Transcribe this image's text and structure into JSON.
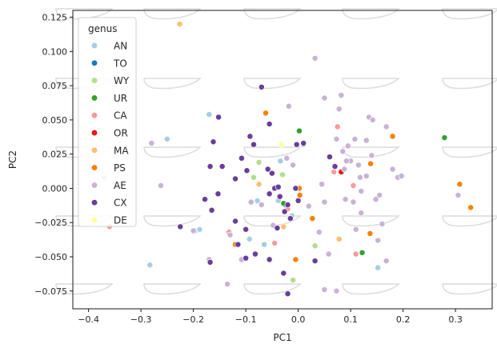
{
  "chart_data": {
    "type": "scatter",
    "xlabel": "PC1",
    "ylabel": "PC2",
    "xlim": [
      -0.43,
      0.37
    ],
    "ylim": [
      -0.088,
      0.13
    ],
    "xticks": [
      -0.4,
      -0.3,
      -0.2,
      -0.1,
      0.0,
      0.1,
      0.2,
      0.3
    ],
    "xtick_labels": [
      "−0.4",
      "−0.3",
      "−0.2",
      "−0.1",
      "0.0",
      "0.1",
      "0.2",
      "0.3"
    ],
    "yticks": [
      -0.075,
      -0.05,
      -0.025,
      0.0,
      0.025,
      0.05,
      0.075,
      0.1,
      0.125
    ],
    "ytick_labels": [
      "−0.075",
      "−0.050",
      "−0.025",
      "0.000",
      "0.025",
      "0.050",
      "0.075",
      "0.100",
      "0.125"
    ],
    "grid": false,
    "legend": {
      "title": "genus",
      "placement": "upper-left"
    },
    "series": [
      {
        "name": "AN",
        "color": "#a6cee3",
        "points": [
          [
            -0.37,
            0.008
          ],
          [
            -0.283,
            -0.056
          ],
          [
            -0.25,
            0.036
          ],
          [
            -0.197,
            -0.031
          ],
          [
            -0.188,
            -0.03
          ],
          [
            -0.17,
            0.054
          ],
          [
            -0.093,
            -0.037
          ],
          [
            -0.065,
            -0.041
          ],
          [
            -0.078,
            -0.009
          ],
          [
            -0.038,
            -0.009
          ],
          [
            -0.012,
            -0.02
          ],
          [
            -0.034,
            0.02
          ],
          [
            0.152,
            -0.058
          ]
        ]
      },
      {
        "name": "TO",
        "color": "#1f78b4",
        "points": [
          [
            -0.025,
            -0.012
          ]
        ]
      },
      {
        "name": "WY",
        "color": "#b2df8a",
        "points": [
          [
            -0.085,
            0.008
          ],
          [
            -0.075,
            0.019
          ],
          [
            -0.03,
            0.01
          ],
          [
            0.032,
            -0.042
          ],
          [
            -0.01,
            -0.067
          ]
        ]
      },
      {
        "name": "UR",
        "color": "#33a02c",
        "points": [
          [
            0.002,
            0.042
          ],
          [
            -0.028,
            -0.011
          ],
          [
            0.279,
            0.037
          ],
          [
            0.122,
            -0.047
          ]
        ]
      },
      {
        "name": "CA",
        "color": "#fb9a99",
        "points": [
          [
            -0.36,
            -0.028
          ],
          [
            -0.132,
            -0.032
          ],
          [
            -0.045,
            -0.04
          ],
          [
            -0.02,
            -0.015
          ],
          [
            0.075,
            0.045
          ],
          [
            0.105,
            0.002
          ],
          [
            0.068,
            0.012
          ],
          [
            0.11,
            -0.048
          ]
        ]
      },
      {
        "name": "OR",
        "color": "#e31a1c",
        "points": [
          [
            0.082,
            0.012
          ]
        ]
      },
      {
        "name": "MA",
        "color": "#fdbf6f",
        "points": [
          [
            -0.226,
            0.12
          ],
          [
            -0.075,
            0.003
          ],
          [
            -0.028,
            -0.028
          ],
          [
            0.078,
            -0.037
          ]
        ]
      },
      {
        "name": "PS",
        "color": "#ff7f00",
        "points": [
          [
            -0.062,
            0.055
          ],
          [
            0.003,
            -0.005
          ],
          [
            0.002,
            0.0
          ],
          [
            -0.005,
            -0.052
          ],
          [
            0.027,
            -0.022
          ],
          [
            0.138,
            0.018
          ],
          [
            0.137,
            -0.033
          ],
          [
            0.18,
            0.038
          ],
          [
            0.308,
            0.003
          ],
          [
            0.329,
            -0.014
          ],
          [
            -0.12,
            -0.041
          ]
        ]
      },
      {
        "name": "AE",
        "color": "#cab2d6",
        "points": [
          [
            -0.28,
            0.033
          ],
          [
            -0.262,
            0.002
          ],
          [
            -0.2,
            -0.031
          ],
          [
            -0.17,
            -0.052
          ],
          [
            -0.13,
            -0.034
          ],
          [
            -0.108,
            -0.052
          ],
          [
            -0.135,
            -0.07
          ],
          [
            -0.09,
            -0.01
          ],
          [
            -0.07,
            -0.012
          ],
          [
            -0.048,
            -0.027
          ],
          [
            -0.022,
            0.022
          ],
          [
            -0.01,
            0.017
          ],
          [
            -0.018,
            0.06
          ],
          [
            0.01,
            0.032
          ],
          [
            0.032,
            0.095
          ],
          [
            0.05,
            0.066
          ],
          [
            0.073,
            0.036
          ],
          [
            0.078,
            0.058
          ],
          [
            0.082,
            0.068
          ],
          [
            0.085,
            0.027
          ],
          [
            0.095,
            0.031
          ],
          [
            0.088,
            0.014
          ],
          [
            0.1,
            0.02
          ],
          [
            0.108,
            0.036
          ],
          [
            0.115,
            0.017
          ],
          [
            0.118,
            0.008
          ],
          [
            0.12,
            -0.002
          ],
          [
            0.13,
            0.035
          ],
          [
            0.135,
            0.052
          ],
          [
            0.142,
            0.05
          ],
          [
            0.14,
            0.024
          ],
          [
            0.13,
            0.009
          ],
          [
            0.168,
            0.045
          ],
          [
            0.18,
            0.014
          ],
          [
            0.19,
            0.008
          ],
          [
            0.197,
            0.009
          ],
          [
            0.155,
            -0.005
          ],
          [
            0.148,
            -0.008
          ],
          [
            0.16,
            -0.026
          ],
          [
            0.152,
            -0.038
          ],
          [
            0.12,
            -0.018
          ],
          [
            0.105,
            -0.01
          ],
          [
            0.11,
            -0.03
          ],
          [
            0.05,
            -0.01
          ],
          [
            0.04,
            -0.032
          ],
          [
            0.058,
            -0.048
          ],
          [
            0.09,
            -0.008
          ],
          [
            0.05,
            -0.074
          ],
          [
            0.073,
            -0.075
          ],
          [
            0.168,
            -0.053
          ],
          [
            0.305,
            -0.005
          ],
          [
            0.045,
            0.003
          ],
          [
            0.092,
            0.02
          ],
          [
            0.02,
            -0.013
          ]
        ]
      },
      {
        "name": "CX",
        "color": "#6a3d9a",
        "points": [
          [
            -0.168,
            0.016
          ],
          [
            -0.152,
            0.052
          ],
          [
            -0.162,
            0.034
          ],
          [
            -0.145,
            0.016
          ],
          [
            -0.153,
            -0.004
          ],
          [
            -0.108,
            0.022
          ],
          [
            -0.12,
            0.007
          ],
          [
            -0.098,
            0.013
          ],
          [
            -0.092,
            0.038
          ],
          [
            -0.085,
            0.032
          ],
          [
            -0.07,
            0.074
          ],
          [
            -0.055,
            0.047
          ],
          [
            -0.058,
            0.014
          ],
          [
            -0.05,
            0.011
          ],
          [
            -0.055,
            -0.004
          ],
          [
            -0.045,
            0.0
          ],
          [
            -0.038,
            0.001
          ],
          [
            -0.035,
            -0.006
          ],
          [
            -0.02,
            -0.012
          ],
          [
            -0.003,
            0.032
          ],
          [
            0.01,
            0.033
          ],
          [
            -0.005,
            0.0
          ],
          [
            -0.026,
            -0.017
          ],
          [
            -0.015,
            -0.022
          ],
          [
            -0.04,
            -0.029
          ],
          [
            -0.055,
            -0.052
          ],
          [
            -0.028,
            -0.062
          ],
          [
            -0.02,
            -0.077
          ],
          [
            -0.1,
            -0.051
          ],
          [
            -0.115,
            -0.041
          ],
          [
            -0.12,
            -0.024
          ],
          [
            -0.1,
            -0.03
          ],
          [
            -0.082,
            -0.048
          ],
          [
            -0.165,
            -0.016
          ],
          [
            -0.168,
            -0.054
          ],
          [
            -0.225,
            -0.028
          ],
          [
            -0.178,
            -0.008
          ],
          [
            0.06,
            0.023
          ],
          [
            0.07,
            0.016
          ],
          [
            0.0,
            -0.009
          ],
          [
            0.032,
            -0.053
          ]
        ]
      },
      {
        "name": "DE",
        "color": "#ffff99",
        "points": [
          [
            -0.032,
            0.032
          ]
        ]
      }
    ]
  }
}
